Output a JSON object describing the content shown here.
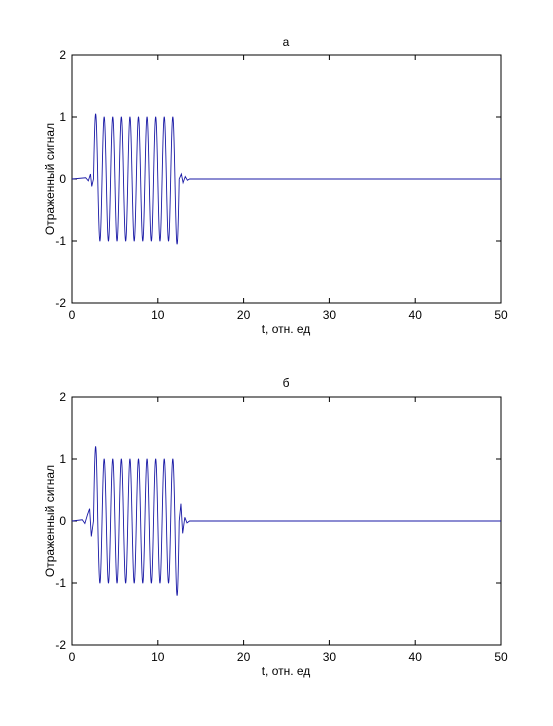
{
  "chart_data": [
    {
      "type": "line",
      "title": "а",
      "xlabel": "t, отн. ед",
      "ylabel": "Отраженный сигнал",
      "xlim": [
        0,
        50
      ],
      "ylim": [
        -2,
        2
      ],
      "xticks": [
        0,
        10,
        20,
        30,
        40,
        50
      ],
      "yticks": [
        -2,
        -1,
        0,
        1,
        2
      ],
      "grid": false,
      "line_color": "#1a1aa6",
      "series": [
        {
          "burst_start": 2.5,
          "burst_end": 12.5,
          "period": 1.0,
          "amplitude": 1.0,
          "overshoot_start": 1.05,
          "overshoot_end": -1.05,
          "pre_ringing": [
            [
              1.6,
              0.02
            ],
            [
              1.9,
              -0.03
            ],
            [
              2.15,
              0.08
            ],
            [
              2.3,
              -0.12
            ]
          ],
          "post_ringing": [
            [
              12.75,
              0.08
            ],
            [
              12.95,
              -0.06
            ],
            [
              13.2,
              0.04
            ],
            [
              13.45,
              -0.02
            ]
          ],
          "baseline_value": 0
        }
      ]
    },
    {
      "type": "line",
      "title": "б",
      "xlabel": "t, отн. ед",
      "ylabel": "Отраженный сигнал",
      "xlim": [
        0,
        50
      ],
      "ylim": [
        -2,
        2
      ],
      "xticks": [
        0,
        10,
        20,
        30,
        40,
        50
      ],
      "yticks": [
        -2,
        -1,
        0,
        1,
        2
      ],
      "grid": false,
      "line_color": "#1a1aa6",
      "series": [
        {
          "burst_start": 2.5,
          "burst_end": 12.5,
          "period": 1.0,
          "amplitude": 1.0,
          "overshoot_start": 1.2,
          "overshoot_end": -1.2,
          "pre_ringing": [
            [
              1.2,
              0.02
            ],
            [
              1.5,
              -0.04
            ],
            [
              1.8,
              0.1
            ],
            [
              2.05,
              0.2
            ],
            [
              2.25,
              -0.25
            ]
          ],
          "post_ringing": [
            [
              12.7,
              0.28
            ],
            [
              12.9,
              -0.2
            ],
            [
              13.15,
              0.06
            ],
            [
              13.4,
              -0.03
            ]
          ],
          "baseline_value": 0
        }
      ]
    }
  ]
}
